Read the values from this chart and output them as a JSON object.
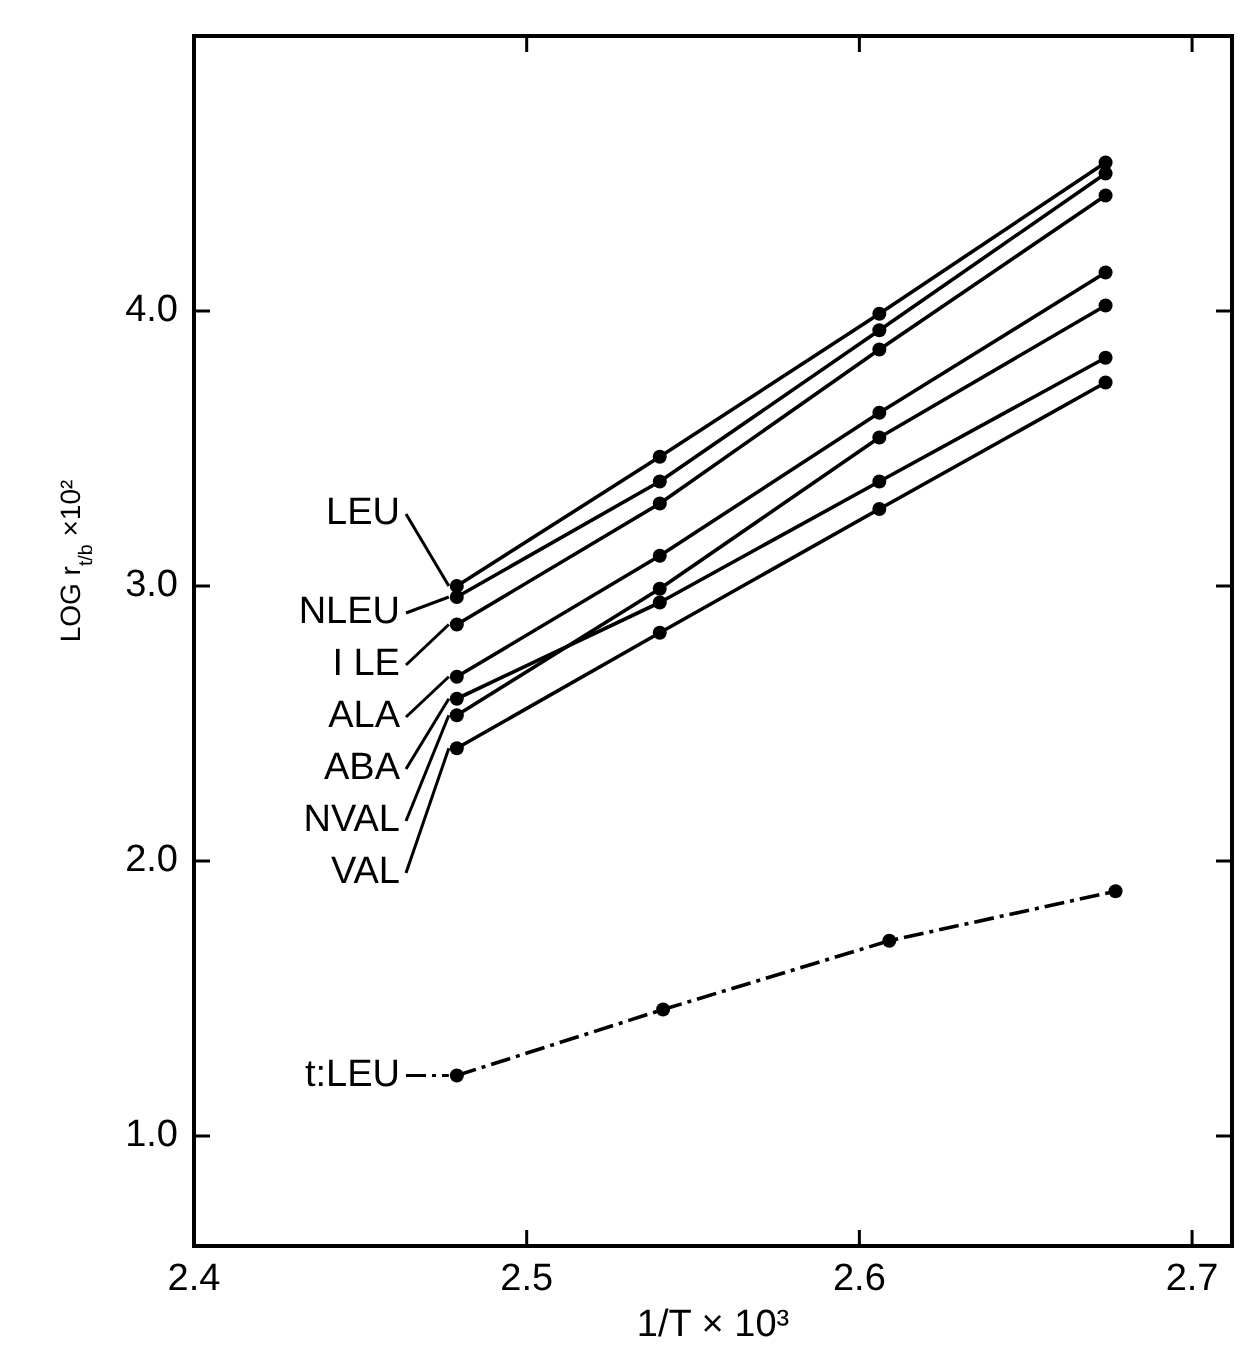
{
  "chart_data": {
    "type": "line",
    "xlabel": "1/T × 10³",
    "ylabel": "LOG r$_{t/b}$ ×10²",
    "x": [
      2.479,
      2.54,
      2.606,
      2.674
    ],
    "xlim": [
      2.4,
      2.712
    ],
    "xticks": [
      2.4,
      2.5,
      2.6,
      2.7
    ],
    "ylim": [
      0.6,
      5.0
    ],
    "yticks": [
      {
        "value": 1,
        "label": "1.0"
      },
      {
        "value": 2,
        "label": "2.0"
      },
      {
        "value": 3,
        "label": "3.0"
      },
      {
        "value": 4,
        "label": "4.0"
      }
    ],
    "grid": false,
    "legend": "left",
    "marker": "circle",
    "line_style": "solid",
    "series": [
      {
        "name": "LEU",
        "color": "#000000",
        "values": [
          3.0,
          3.47,
          3.99,
          4.54
        ]
      },
      {
        "name": "NLEU",
        "color": "#000000",
        "values": [
          2.96,
          3.38,
          3.93,
          4.5
        ]
      },
      {
        "name": "I LE",
        "color": "#000000",
        "values": [
          2.86,
          3.3,
          3.86,
          4.42
        ]
      },
      {
        "name": "ALA",
        "color": "#000000",
        "values": [
          2.67,
          3.11,
          3.63,
          4.14
        ]
      },
      {
        "name": "ABA",
        "color": "#000000",
        "values": [
          2.59,
          2.94,
          3.38,
          3.83
        ]
      },
      {
        "name": "NVAL",
        "color": "#000000",
        "values": [
          2.53,
          2.99,
          3.54,
          4.02
        ]
      },
      {
        "name": "VAL",
        "color": "#000000",
        "values": [
          2.41,
          2.83,
          3.28,
          3.74
        ]
      },
      {
        "name": "t:LEU",
        "color": "#000000",
        "x": [
          2.479,
          2.541,
          2.609,
          2.677
        ],
        "values": [
          1.22,
          1.46,
          1.71,
          1.89
        ],
        "line_style": "dashed"
      }
    ]
  }
}
